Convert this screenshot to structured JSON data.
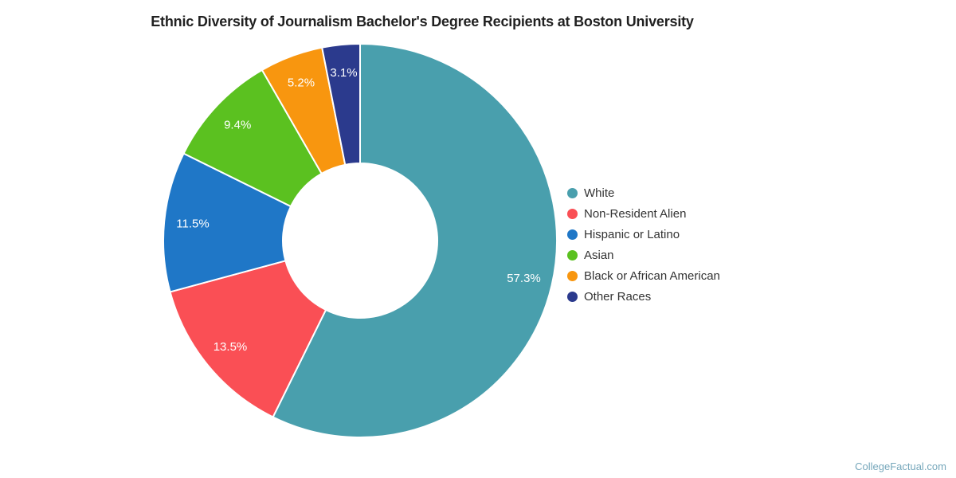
{
  "page": {
    "watermark": "CollegeFactual.com"
  },
  "colors": {
    "background": "#ffffff",
    "title_text": "#212121",
    "legend_text": "#333333",
    "slice_label_text": "#ffffff",
    "slice_border": "#ffffff",
    "watermark_text": "#76A7BB"
  },
  "chart_data": {
    "type": "pie",
    "donut": true,
    "title": "Ethnic Diversity of Journalism Bachelor's Degree Recipients at Boston University",
    "legend_position": "right",
    "start_angle_deg": 0,
    "direction": "clockwise",
    "slices": [
      {
        "name": "White",
        "value": 57.3,
        "label": "57.3%",
        "color": "#499FAD"
      },
      {
        "name": "Non-Resident Alien",
        "value": 13.5,
        "label": "13.5%",
        "color": "#FA4F55"
      },
      {
        "name": "Hispanic or Latino",
        "value": 11.5,
        "label": "11.5%",
        "color": "#1F77C7"
      },
      {
        "name": "Asian",
        "value": 9.4,
        "label": "9.4%",
        "color": "#5BC120"
      },
      {
        "name": "Black or African American",
        "value": 5.2,
        "label": "5.2%",
        "color": "#F8960F"
      },
      {
        "name": "Other Races",
        "value": 3.1,
        "label": "3.1%",
        "color": "#2B3A8D"
      }
    ]
  }
}
